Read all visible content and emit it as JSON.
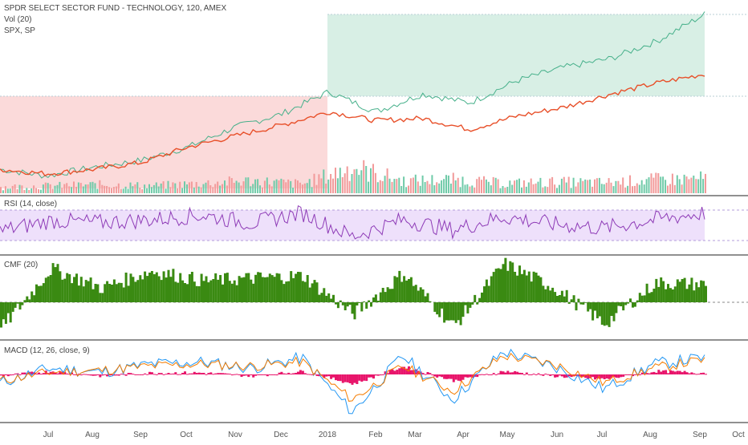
{
  "header": {
    "title": "SPDR SELECT SECTOR FUND - TECHNOLOGY, 120, AMEX",
    "vol_label": "Vol (20)",
    "compare_label": "SPX, SP"
  },
  "indicators": {
    "rsi_label": "RSI (14, close)",
    "cmf_label": "CMF (20)",
    "macd_label": "MACD (12, 26, close, 9)"
  },
  "time_axis": [
    "Jul",
    "Aug",
    "Sep",
    "Oct",
    "Nov",
    "Dec",
    "2018",
    "Feb",
    "Mar",
    "Apr",
    "May",
    "Jun",
    "Jul",
    "Aug",
    "Sep",
    "Oct"
  ],
  "colors": {
    "price_line": "#e8502a",
    "compare_line_up": "#46b08a",
    "compare_line_down": "#e07a8a",
    "fill_up": "#d8efe5",
    "fill_down": "#fbdada",
    "rsi_line": "#8e3bb7",
    "rsi_band": "#eee0fb",
    "cmf_bars": "#3a8a12",
    "macd_hist": "#e8156b",
    "macd_line": "#2196f3",
    "signal_line": "#f57c00",
    "vol_up": "#6fcaa8",
    "vol_down": "#f29a9a",
    "pane_border": "#222222"
  },
  "chart_data": [
    {
      "type": "line",
      "name": "price",
      "x": [
        "Jun",
        "Jul",
        "Aug",
        "Sep",
        "Oct",
        "Nov",
        "Dec",
        "2018",
        "Feb",
        "Mar",
        "Apr",
        "May",
        "Jun",
        "Jul",
        "Aug",
        "Sep"
      ],
      "series": [
        {
          "name": "SPDR SELECT SECTOR FUND - TECHNOLOGY",
          "values": [
            100,
            98,
            100,
            103,
            110,
            115,
            120,
            126,
            122,
            123,
            118,
            124,
            128,
            134,
            139,
            143
          ]
        },
        {
          "name": "SPX, SP",
          "values": [
            100,
            97,
            101,
            104,
            110,
            119,
            125,
            135,
            126,
            134,
            130,
            140,
            146,
            150,
            158,
            170
          ]
        }
      ]
    },
    {
      "type": "bar",
      "name": "Vol (20)",
      "categories": [
        "Jul",
        "Aug",
        "Sep",
        "Oct",
        "Nov",
        "Dec",
        "2018",
        "Feb",
        "Mar",
        "Apr",
        "May",
        "Jun",
        "Jul",
        "Aug",
        "Sep"
      ],
      "values": [
        10,
        12,
        14,
        12,
        16,
        20,
        15,
        42,
        20,
        22,
        16,
        18,
        17,
        22,
        24
      ]
    },
    {
      "type": "line",
      "name": "RSI (14, close)",
      "x": [
        "Jul",
        "Aug",
        "Sep",
        "Oct",
        "Nov",
        "Dec",
        "2018",
        "Feb",
        "Mar",
        "Apr",
        "May",
        "Jun",
        "Jul",
        "Aug",
        "Sep"
      ],
      "values": [
        40,
        58,
        55,
        60,
        68,
        54,
        72,
        30,
        60,
        42,
        65,
        52,
        45,
        60,
        72
      ],
      "band": [
        30,
        70
      ]
    },
    {
      "type": "bar",
      "name": "CMF (20)",
      "categories": [
        "Jul",
        "Aug",
        "Sep",
        "Oct",
        "Nov",
        "Dec",
        "2018",
        "Feb",
        "Mar",
        "Apr",
        "May",
        "Jun",
        "Jul",
        "Aug",
        "Sep"
      ],
      "values": [
        -0.22,
        0.28,
        0.12,
        0.26,
        0.18,
        0.2,
        0.22,
        -0.1,
        0.24,
        -0.2,
        0.32,
        0.12,
        -0.18,
        0.16,
        0.15
      ]
    },
    {
      "type": "line",
      "name": "MACD (12, 26, close, 9)",
      "x": [
        "Jul",
        "Aug",
        "Sep",
        "Oct",
        "Nov",
        "Dec",
        "2018",
        "Feb",
        "Mar",
        "Apr",
        "May",
        "Jun",
        "Jul",
        "Aug",
        "Sep"
      ],
      "series": [
        {
          "name": "MACD",
          "values": [
            -0.4,
            0.3,
            0.1,
            0.5,
            0.6,
            0.3,
            0.8,
            -1.8,
            0.9,
            -1.2,
            1.1,
            0.4,
            -0.7,
            0.5,
            0.8
          ]
        },
        {
          "name": "Signal",
          "values": [
            -0.3,
            0.1,
            0.2,
            0.4,
            0.5,
            0.4,
            0.6,
            -1.2,
            0.4,
            -0.8,
            0.9,
            0.5,
            -0.4,
            0.3,
            0.7
          ]
        }
      ]
    }
  ]
}
